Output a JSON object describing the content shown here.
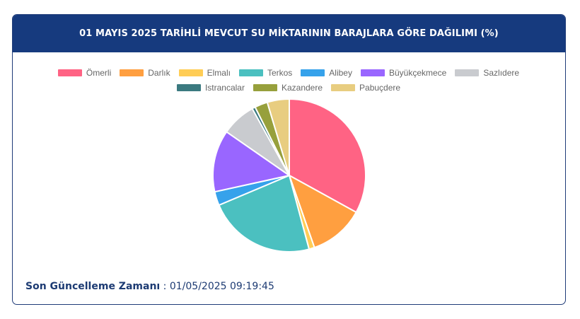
{
  "header": {
    "title": "01 MAYIS 2025 TARİHLİ MEVCUT SU MİKTARININ BARAJLARA GÖRE DAĞILIMI (%)"
  },
  "chart_data": {
    "type": "pie",
    "title": "01 MAYIS 2025 TARİHLİ MEVCUT SU MİKTARININ BARAJLARA GÖRE DAĞILIMI (%)",
    "categories": [
      "Ömerli",
      "Darlık",
      "Elmalı",
      "Terkos",
      "Alibey",
      "Büyükçekmece",
      "Sazlıdere",
      "Istrancalar",
      "Kazandere",
      "Pabuçdere"
    ],
    "values": [
      34.0,
      12.0,
      1.2,
      23.5,
      3.0,
      13.5,
      7.5,
      0.7,
      2.8,
      4.8
    ],
    "colors": [
      "#ff6384",
      "#ff9f40",
      "#ffcd56",
      "#4bc0c0",
      "#36a2eb",
      "#9966ff",
      "#c9cbcf",
      "#3b7a80",
      "#97a03c",
      "#e8cd80"
    ],
    "legend_position": "top"
  },
  "footer": {
    "label": "Son Güncelleme Zamanı",
    "separator": ":",
    "value": "01/05/2025 09:19:45"
  }
}
